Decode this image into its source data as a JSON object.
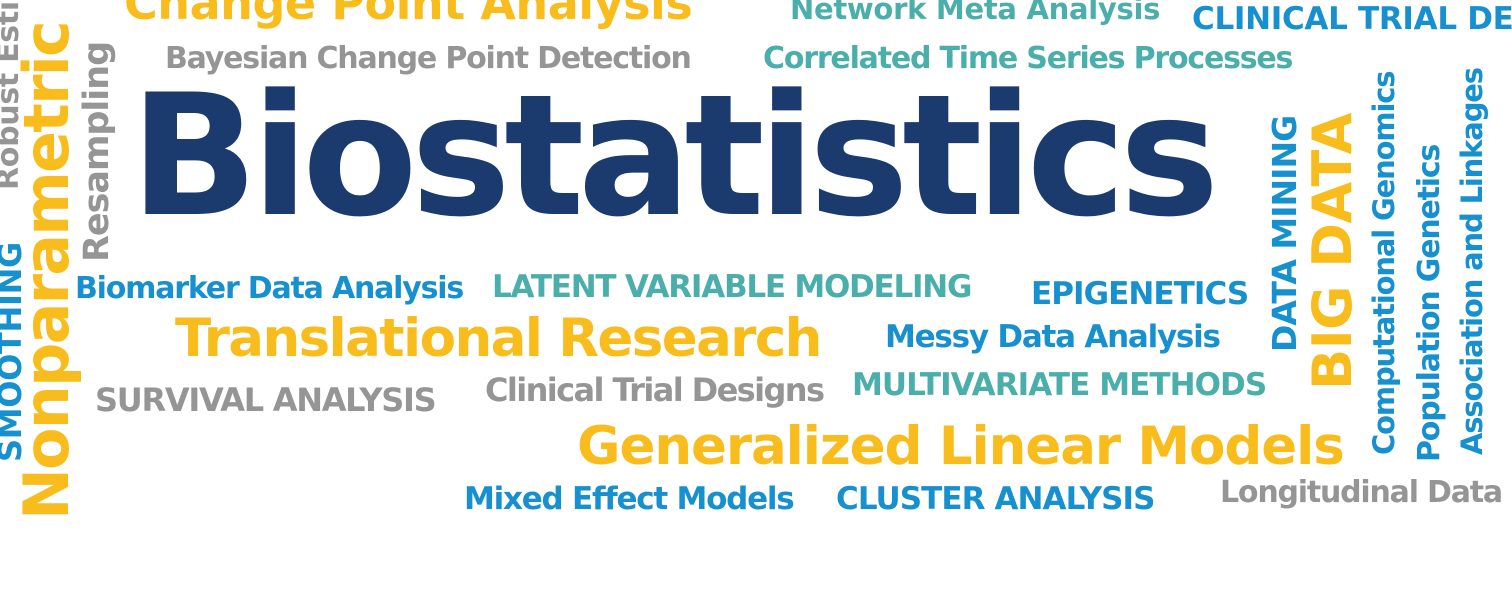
{
  "words": {
    "biostatistics": "Biostatistics",
    "change_point": "Change Point Analysis",
    "network_meta": "Network Meta Analysis",
    "clinical_trial_de": "CLINICAL TRIAL DE",
    "bayesian": "Bayesian Change Point Detection",
    "correlated": "Correlated Time Series Processes",
    "biomarker": "Biomarker Data Analysis",
    "latent": "LATENT VARIABLE MODELING",
    "epigenetics": "EPIGENETICS",
    "translational": "Translational Research",
    "messy": "Messy Data Analysis",
    "survival": "SURVIVAL ANALYSIS",
    "clinical_designs": "Clinical Trial Designs",
    "multivariate": "MULTIVARIATE METHODS",
    "glm": "Generalized Linear Models",
    "mixed": "Mixed Effect Models",
    "cluster": "CLUSTER ANALYSIS",
    "longitudinal": "Longitudinal Data",
    "nonparametric": "Nonparametric Mo",
    "smoothing": "SMOOTHING",
    "robust": "Robust Esti",
    "resampling": "Resampling",
    "data_mining": "DATA MINING",
    "big_data": "BIG DATA",
    "comp_genomics": "Computational Genomics",
    "pop_genetics": "Population Genetics",
    "association": "Association and Linkages"
  },
  "colors": {
    "navy": "#1b3a6e",
    "yellow": "#f8bc1c",
    "blue": "#1690cf",
    "teal": "#4aaeaa",
    "gray": "#959596"
  }
}
